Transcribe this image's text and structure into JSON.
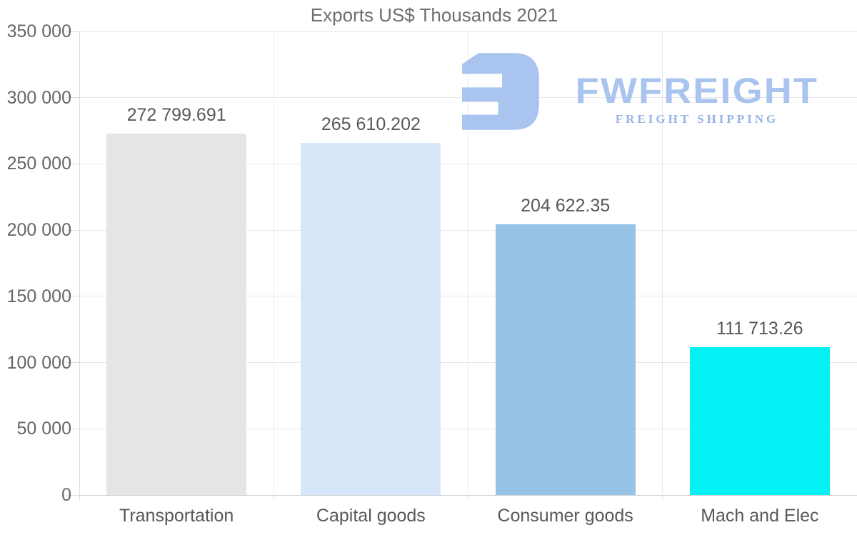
{
  "title": "Exports US$ Thousands 2021",
  "logo": {
    "brand": "FWFREIGHT",
    "tagline": "FREIGHT SHIPPING",
    "glyph": "stylized-E-freight-mark-icon",
    "brand_color": "#a9c4ef",
    "tagline_color": "#98b3e5"
  },
  "colors": {
    "background": "#ffffff",
    "title_text": "#6e6e6e",
    "axis_text": "#666666",
    "label_text": "#585858",
    "gridline": "#e8e8e8",
    "axis_line": "#dcdcdc",
    "baseline": "#cfcfcf"
  },
  "chart_data": {
    "type": "bar",
    "title": "Exports US$ Thousands 2021",
    "categories": [
      "Transportation",
      "Capital goods",
      "Consumer goods",
      "Mach and Elec"
    ],
    "values": [
      272799.691,
      265610.202,
      204622.35,
      111713.26
    ],
    "value_labels": [
      "272 799.691",
      "265 610.202",
      "204 622.35",
      "111 713.26"
    ],
    "bar_colors": [
      "#e5e5e5",
      "#d7e7f9",
      "#97c3e7",
      "#06f1f6"
    ],
    "xlabel": "",
    "ylabel": "",
    "ylim": [
      0,
      350000
    ],
    "y_ticks": [
      0,
      50000,
      100000,
      150000,
      200000,
      250000,
      300000,
      350000
    ],
    "y_tick_labels": [
      "0",
      "50 000",
      "100 000",
      "150 000",
      "200 000",
      "250 000",
      "300 000",
      "350 000"
    ],
    "grid": true,
    "legend_position": "none"
  }
}
